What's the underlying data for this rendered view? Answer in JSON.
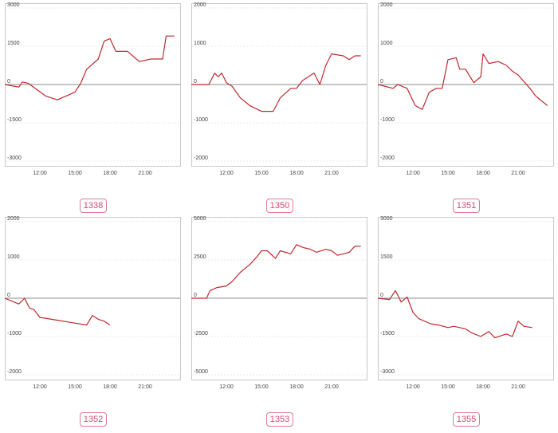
{
  "colors": {
    "line": "#c0282d",
    "zero": "#888888",
    "frame": "#c8c8c8",
    "grid": "#e2e2e2",
    "label": "#d24b6f"
  },
  "chart_data": [
    {
      "type": "line",
      "label": "1338",
      "x_ticks": [
        "12:00",
        "15:00",
        "18:00",
        "21:00"
      ],
      "y_ticks": [
        "3000",
        "1500",
        "0",
        "-1500",
        "-3000"
      ],
      "ylim": [
        -3000,
        3000
      ],
      "x": [
        9.0,
        10.2,
        10.5,
        11.0,
        12.5,
        13.5,
        15.0,
        15.5,
        16.0,
        17.0,
        17.5,
        18.0,
        18.5,
        19.5,
        20.5,
        21.5,
        22.5,
        22.8,
        23.5
      ],
      "values": [
        0,
        -100,
        100,
        50,
        -450,
        -600,
        -300,
        50,
        600,
        1000,
        1700,
        1800,
        1300,
        1300,
        900,
        1000,
        1000,
        1900,
        1900
      ]
    },
    {
      "type": "line",
      "label": "1350",
      "x_ticks": [
        "12:00",
        "15:00",
        "18:00",
        "21:00"
      ],
      "y_ticks": [
        "2000",
        "1000",
        "0",
        "-1000",
        "-2000"
      ],
      "ylim": [
        -2000,
        2000
      ],
      "x": [
        9.0,
        10.5,
        11.0,
        11.3,
        11.6,
        12.0,
        12.5,
        13.2,
        14.0,
        15.0,
        16.0,
        16.6,
        17.5,
        18.0,
        18.5,
        19.5,
        20.0,
        20.5,
        21.0,
        22.0,
        22.5,
        23.0,
        23.5
      ],
      "values": [
        0,
        0,
        300,
        200,
        300,
        50,
        -50,
        -350,
        -550,
        -700,
        -700,
        -350,
        -100,
        -100,
        100,
        300,
        0,
        500,
        800,
        750,
        650,
        750,
        750
      ]
    },
    {
      "type": "line",
      "label": "1351",
      "x_ticks": [
        "12:00",
        "15:00",
        "18:00",
        "21:00"
      ],
      "y_ticks": [
        "2000",
        "1000",
        "0",
        "-1000",
        "-2000"
      ],
      "ylim": [
        -2000,
        2000
      ],
      "x": [
        9.0,
        10.3,
        10.7,
        11.5,
        12.2,
        12.8,
        13.4,
        14.0,
        14.5,
        15.0,
        15.7,
        16.0,
        16.5,
        17.2,
        17.8,
        18.0,
        18.5,
        19.3,
        20.0,
        20.5,
        21.0,
        22.0,
        22.5,
        23.5
      ],
      "values": [
        0,
        -100,
        0,
        -100,
        -550,
        -650,
        -200,
        -100,
        -100,
        650,
        700,
        400,
        400,
        50,
        200,
        800,
        550,
        600,
        500,
        350,
        250,
        -100,
        -300,
        -550
      ]
    },
    {
      "type": "line",
      "label": "1352",
      "x_ticks": [
        "12:00",
        "15:00",
        "18:00",
        "21:00"
      ],
      "y_ticks": [
        "2000",
        "1000",
        "0",
        "-1000",
        "-2000"
      ],
      "ylim": [
        -2000,
        2000
      ],
      "x": [
        9.0,
        10.2,
        10.7,
        11.1,
        11.5,
        12.0,
        13.0,
        15.0,
        16.0,
        16.5,
        17.0,
        17.5,
        18.0
      ],
      "values": [
        0,
        -150,
        0,
        -250,
        -300,
        -500,
        -550,
        -650,
        -700,
        -450,
        -550,
        -600,
        -700
      ]
    },
    {
      "type": "line",
      "label": "1353",
      "x_ticks": [
        "12:00",
        "15:00",
        "18:00",
        "21:00"
      ],
      "y_ticks": [
        "5000",
        "2500",
        "0",
        "-2500",
        "-5000"
      ],
      "ylim": [
        -5000,
        5000
      ],
      "x": [
        9.0,
        10.3,
        10.6,
        11.2,
        12.0,
        12.5,
        13.2,
        14.0,
        14.6,
        15.0,
        15.5,
        16.2,
        16.6,
        17.5,
        18.0,
        18.6,
        19.2,
        19.7,
        20.5,
        21.0,
        21.5,
        22.5,
        23.0,
        23.5
      ],
      "values": [
        0,
        0,
        500,
        700,
        800,
        1100,
        1700,
        2200,
        2700,
        3100,
        3100,
        2600,
        3100,
        2900,
        3500,
        3300,
        3200,
        3000,
        3200,
        3100,
        2800,
        3000,
        3400,
        3400
      ]
    },
    {
      "type": "line",
      "label": "1355",
      "x_ticks": [
        "12:00",
        "15:00",
        "18:00",
        "21:00"
      ],
      "y_ticks": [
        "3000",
        "1500",
        "0",
        "-1500",
        "-3000"
      ],
      "ylim": [
        -3000,
        3000
      ],
      "x": [
        9.0,
        10.0,
        10.5,
        11.0,
        11.5,
        12.0,
        12.5,
        13.5,
        14.2,
        15.0,
        15.5,
        16.5,
        17.0,
        17.8,
        18.5,
        19.0,
        20.0,
        20.5,
        21.0,
        21.5,
        22.2
      ],
      "values": [
        0,
        -50,
        300,
        -150,
        50,
        -550,
        -800,
        -1000,
        -1050,
        -1150,
        -1100,
        -1200,
        -1350,
        -1500,
        -1300,
        -1550,
        -1400,
        -1500,
        -900,
        -1100,
        -1150
      ]
    }
  ]
}
